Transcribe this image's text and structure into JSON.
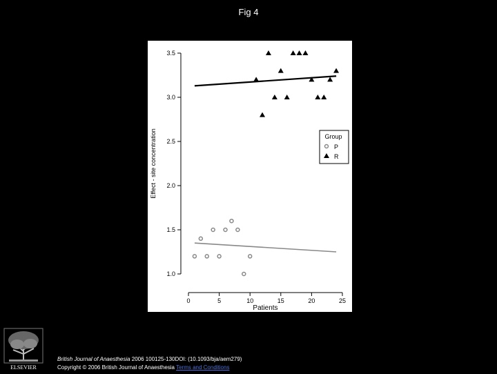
{
  "figure_title": "Fig 4",
  "logo_text": "ELSEVIER",
  "citation": {
    "journal": "British Journal of Anaesthesia",
    "reference": " 2006 100125-130DOI: (10.1093/bja/aem279)",
    "copyright": "Copyright © 2006 British Journal of Anaesthesia",
    "terms_link": "Terms and Conditions"
  },
  "chart_data": {
    "type": "scatter",
    "xlabel": "Patients",
    "ylabel": "Effect - site concentration",
    "xlim": [
      0,
      25
    ],
    "ylim": [
      1.0,
      3.5
    ],
    "xticks": [
      "0",
      "5",
      "10",
      "15",
      "20",
      "25"
    ],
    "yticks": [
      "1.0",
      "1.5",
      "2.0",
      "2.5",
      "3.0",
      "3.5"
    ],
    "legend": {
      "title": "Group",
      "position": "right",
      "entries": [
        "P",
        "R"
      ]
    },
    "series": [
      {
        "name": "P",
        "marker": "open-circle",
        "color": "#888888",
        "x": [
          1,
          2,
          3,
          4,
          5,
          6,
          7,
          8,
          9,
          10
        ],
        "y": [
          1.2,
          1.4,
          1.2,
          1.5,
          1.2,
          1.5,
          1.6,
          1.5,
          1.0,
          1.2
        ],
        "trend": {
          "x": [
            1,
            24
          ],
          "y": [
            1.35,
            1.25
          ],
          "color": "#888888"
        }
      },
      {
        "name": "R",
        "marker": "filled-triangle",
        "color": "#000000",
        "x": [
          11,
          12,
          13,
          14,
          15,
          16,
          17,
          18,
          19,
          20,
          21,
          22,
          23,
          24
        ],
        "y": [
          3.2,
          2.8,
          3.5,
          3.0,
          3.3,
          3.0,
          3.5,
          3.5,
          3.5,
          3.2,
          3.0,
          3.0,
          3.2,
          3.3
        ],
        "trend": {
          "x": [
            1,
            24
          ],
          "y": [
            3.13,
            3.24
          ],
          "color": "#000000"
        }
      }
    ]
  }
}
